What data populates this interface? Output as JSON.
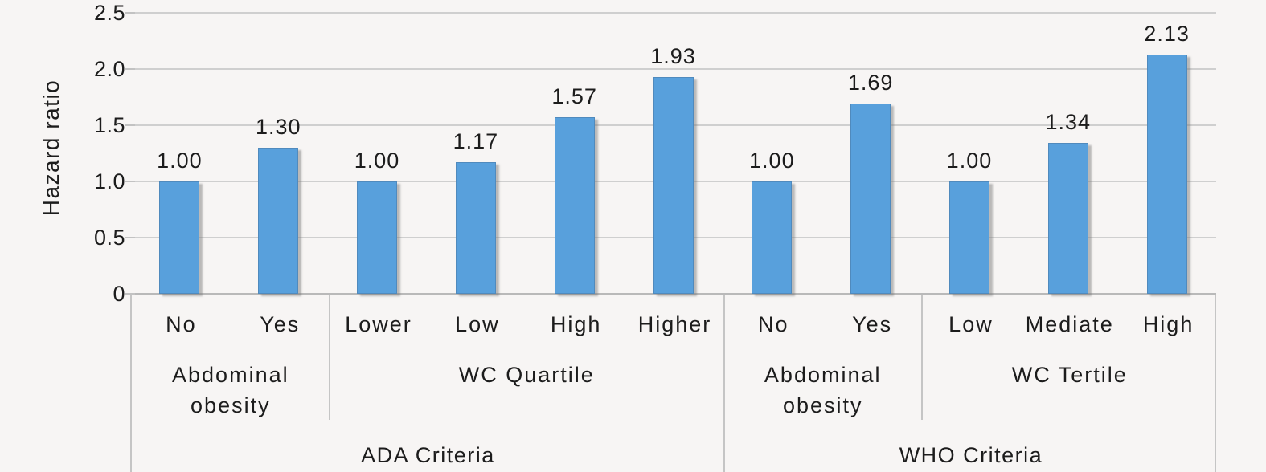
{
  "chart_data": {
    "type": "bar",
    "title": "",
    "ylabel": "Hazard ratio",
    "xlabel": "",
    "ylim": [
      0,
      2.5
    ],
    "grid": true,
    "legend": "none",
    "yticks": [
      {
        "label": "2.5",
        "value": 2.5
      },
      {
        "label": "2.0",
        "value": 2.0
      },
      {
        "label": "1.5",
        "value": 1.5
      },
      {
        "label": "1.0",
        "value": 1.0
      },
      {
        "label": "0.5",
        "value": 0.5
      },
      {
        "label": "0",
        "value": 0
      }
    ],
    "categories": [
      "No",
      "Yes",
      "Lower",
      "Low",
      "High",
      "Higher",
      "No",
      "Yes",
      "Low",
      "Mediate",
      "High"
    ],
    "values": [
      1.0,
      1.3,
      1.0,
      1.17,
      1.57,
      1.93,
      1.0,
      1.69,
      1.0,
      1.34,
      2.13
    ],
    "value_labels": [
      "1.00",
      "1.30",
      "1.00",
      "1.17",
      "1.57",
      "1.93",
      "1.00",
      "1.69",
      "1.00",
      "1.34",
      "2.13"
    ],
    "groups_level2": [
      {
        "label": "Abdominal obesity",
        "span": 2
      },
      {
        "label": "WC Quartile",
        "span": 4
      },
      {
        "label": "Abdominal obesity",
        "span": 2
      },
      {
        "label": "WC Tertile",
        "span": 3
      }
    ],
    "groups_level3": [
      {
        "label": "ADA Criteria",
        "span": 6
      },
      {
        "label": "WHO Criteria",
        "span": 5
      }
    ],
    "colors": {
      "bar": "#58a0dc",
      "background": "#f7f5f4",
      "gridline": "#cfcfcf",
      "axis_border": "#c5c5c5",
      "text": "#1c1c1c"
    }
  }
}
